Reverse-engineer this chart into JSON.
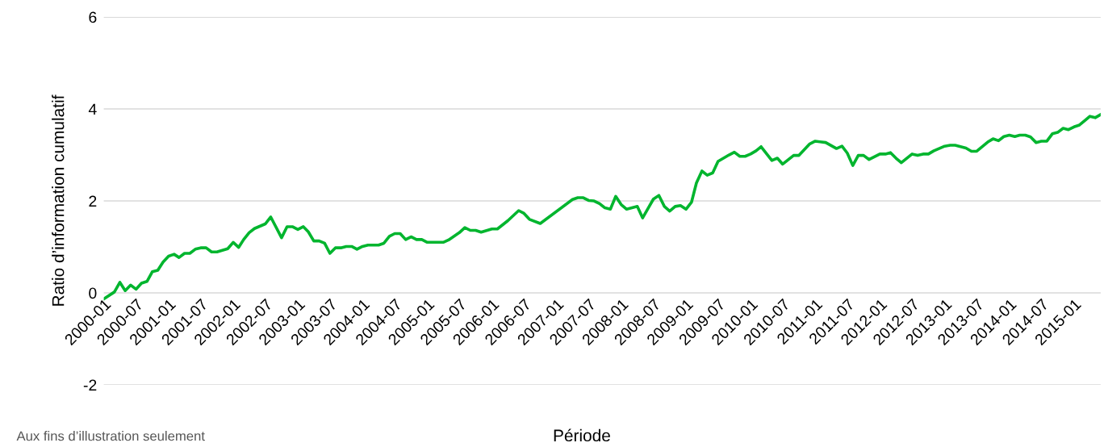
{
  "chart_data": {
    "type": "line",
    "ylabel": "Ratio d’information cumulatif",
    "xlabel": "Période",
    "annotations": [
      "Aux fins d’illustration seulement"
    ],
    "x": [
      "2000-01",
      "2000-03",
      "2000-04",
      "2000-05",
      "2000-06",
      "2000-07",
      "2000-08",
      "2000-09",
      "2000-10",
      "2000-11",
      "2000-12",
      "2001-01",
      "2001-02",
      "2001-03",
      "2001-04",
      "2001-05",
      "2001-06",
      "2001-07",
      "2001-08",
      "2001-09",
      "2001-10",
      "2001-12",
      "2002-01",
      "2002-02",
      "2002-03",
      "2002-04",
      "2002-05",
      "2002-07",
      "2002-08",
      "2002-10",
      "2002-11",
      "2002-12",
      "2003-01",
      "2003-02",
      "2003-03",
      "2003-04",
      "2003-05",
      "2003-06",
      "2003-07",
      "2003-08",
      "2003-09",
      "2003-10",
      "2003-11",
      "2003-12",
      "2004-01",
      "2004-02",
      "2004-04",
      "2004-05",
      "2004-06",
      "2004-07",
      "2004-08",
      "2004-09",
      "2004-10",
      "2004-11",
      "2004-12",
      "2005-01",
      "2005-04",
      "2005-05",
      "2005-07",
      "2005-08",
      "2005-09",
      "2005-10",
      "2005-11",
      "2006-01",
      "2006-02",
      "2006-04",
      "2006-06",
      "2006-07",
      "2006-08",
      "2006-10",
      "2007-04",
      "2007-05",
      "2007-06",
      "2007-07",
      "2007-08",
      "2007-09",
      "2007-10",
      "2007-11",
      "2007-12",
      "2008-01",
      "2008-02",
      "2008-04",
      "2008-05",
      "2008-07",
      "2008-08",
      "2008-09",
      "2008-10",
      "2008-11",
      "2008-12",
      "2009-01",
      "2009-02",
      "2009-03",
      "2009-04",
      "2009-05",
      "2009-06",
      "2009-07",
      "2009-09",
      "2009-10",
      "2009-11",
      "2009-12",
      "2010-01",
      "2010-02",
      "2010-03",
      "2010-05",
      "2010-06",
      "2010-07",
      "2010-09",
      "2010-10",
      "2010-12",
      "2011-01",
      "2011-03",
      "2011-05",
      "2011-06",
      "2011-07",
      "2011-08",
      "2011-09",
      "2011-10",
      "2011-11",
      "2012-01",
      "2012-02",
      "2012-03",
      "2012-04",
      "2012-05",
      "2012-07",
      "2012-08",
      "2012-09",
      "2012-10",
      "2012-11",
      "2013-01",
      "2013-02",
      "2013-03",
      "2013-05",
      "2013-06",
      "2013-07",
      "2013-09",
      "2013-10",
      "2013-11",
      "2013-12",
      "2014-01",
      "2014-02",
      "2014-03",
      "2014-04",
      "2014-05",
      "2014-06",
      "2014-07",
      "2014-08",
      "2014-09",
      "2014-10",
      "2014-11",
      "2014-12",
      "2015-01",
      "2015-02",
      "2015-03",
      "2015-04",
      "2015-05",
      "2015-06"
    ],
    "series": [
      {
        "color": "#00b52e",
        "values": [
          -0.13,
          0.02,
          0.23,
          0.05,
          0.17,
          0.08,
          0.21,
          0.25,
          0.46,
          0.49,
          0.67,
          0.8,
          0.84,
          0.77,
          0.86,
          0.86,
          0.95,
          0.98,
          0.98,
          0.89,
          0.89,
          0.96,
          1.1,
          0.99,
          1.16,
          1.31,
          1.4,
          1.5,
          1.65,
          1.2,
          1.44,
          1.44,
          1.38,
          1.44,
          1.33,
          1.13,
          1.13,
          1.08,
          0.86,
          0.98,
          0.98,
          1.01,
          1.01,
          0.95,
          1.01,
          1.04,
          1.04,
          1.08,
          1.23,
          1.29,
          1.29,
          1.16,
          1.22,
          1.16,
          1.16,
          1.1,
          1.1,
          1.15,
          1.31,
          1.42,
          1.36,
          1.36,
          1.32,
          1.39,
          1.39,
          1.57,
          1.79,
          1.73,
          1.6,
          1.51,
          2.03,
          2.07,
          2.07,
          2.01,
          2.0,
          1.94,
          1.85,
          1.82,
          2.1,
          1.92,
          1.82,
          1.88,
          1.63,
          2.04,
          2.12,
          1.88,
          1.78,
          1.88,
          1.9,
          1.82,
          1.97,
          2.39,
          2.65,
          2.56,
          2.61,
          2.86,
          3.0,
          3.06,
          2.97,
          2.97,
          3.02,
          3.09,
          3.18,
          2.88,
          2.93,
          2.8,
          2.99,
          2.99,
          3.24,
          3.3,
          3.27,
          3.14,
          3.19,
          3.04,
          2.77,
          2.99,
          2.99,
          2.9,
          3.02,
          3.02,
          3.05,
          2.93,
          2.83,
          3.02,
          2.99,
          3.02,
          3.02,
          3.09,
          3.19,
          3.21,
          3.21,
          3.15,
          3.08,
          3.08,
          3.28,
          3.35,
          3.31,
          3.4,
          3.43,
          3.4,
          3.43,
          3.43,
          3.39,
          3.27,
          3.3,
          3.3,
          3.46,
          3.49,
          3.58,
          3.55,
          3.61,
          3.65,
          3.74,
          3.84,
          3.81,
          3.88
        ]
      }
    ],
    "xlim": [
      "2000-01",
      "2015-06"
    ],
    "xticks": [
      "2000-01",
      "2000-07",
      "2001-01",
      "2001-07",
      "2002-01",
      "2002-07",
      "2003-01",
      "2003-07",
      "2004-01",
      "2004-07",
      "2005-01",
      "2005-07",
      "2006-01",
      "2006-07",
      "2007-01",
      "2007-07",
      "2008-01",
      "2008-07",
      "2009-01",
      "2009-07",
      "2010-01",
      "2010-07",
      "2011-01",
      "2011-07",
      "2012-01",
      "2012-07",
      "2013-01",
      "2013-07",
      "2014-01",
      "2014-07",
      "2015-01"
    ],
    "ylim": [
      -2,
      6
    ],
    "yticks": [
      -2,
      0,
      2,
      4,
      6
    ],
    "grid": "y",
    "line_style": "solid",
    "marker": "none"
  }
}
